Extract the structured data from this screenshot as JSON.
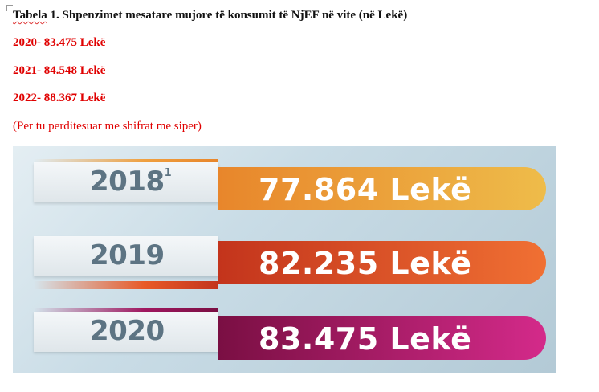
{
  "document": {
    "title_underlined": "Tabela",
    "title_rest": " 1. Shpenzimet mesatare mujore të konsumit të NjEF në vite (në Lekë)",
    "lines": [
      "2020- 83.475 Lekë",
      "2021- 84.548 Lekë",
      "2022- 88.367 Lekë"
    ],
    "note": "(Per tu perditesuar me shifrat me siper)"
  },
  "infographic": {
    "rows": [
      {
        "year": "2018",
        "footnote": "1",
        "value_text": "77.864 Lekë",
        "color_start": "#e8862b",
        "color_end": "#eebc4a",
        "wedge_color": "#f0a040"
      },
      {
        "year": "2019",
        "footnote": "",
        "value_text": "82.235 Lekë",
        "color_start": "#c3341c",
        "color_end": "#f07033",
        "wedge_color": "#e85a28"
      },
      {
        "year": "2020",
        "footnote": "",
        "value_text": "83.475 Lekë",
        "color_start": "#7a0f43",
        "color_end": "#d42a8a",
        "wedge_color": "#a01860"
      }
    ]
  }
}
